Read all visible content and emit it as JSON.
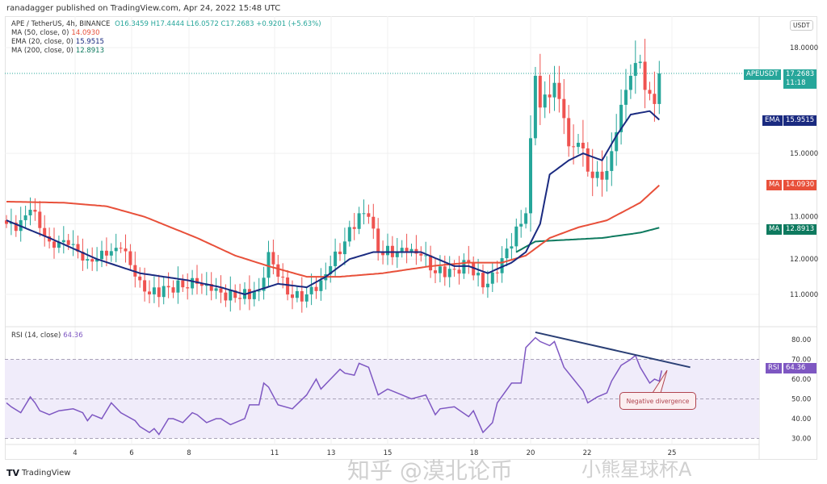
{
  "publisher_line": "ranadagger published on TradingView.com, Apr 24, 2022 15:48 UTC",
  "legend": {
    "symbol": "APE / TetherUS, 4h, BINANCE",
    "ohlc": "O16.3459  H17.4444  L16.0572  C17.2683  +0.9201 (+5.63%)",
    "ma50_label": "MA (50, close, 0)",
    "ma50_value": "14.0930",
    "ema20_label": "EMA (20, close, 0)",
    "ema20_value": "15.9515",
    "ma200_label": "MA (200, close, 0)",
    "ma200_value": "12.8913",
    "rsi_label": "RSI (14, close)",
    "rsi_value": "64.36"
  },
  "currency_button": "USDT",
  "price_tags": {
    "symbol": "APEUSDT",
    "price": "17.2683",
    "countdown": "11:18",
    "ema_name": "EMA",
    "ema": "15.9515",
    "ma50_name": "MA",
    "ma50": "14.0930",
    "ma200_name": "MA",
    "ma200": "12.8913",
    "rsi_name": "RSI",
    "rsi": "64.36"
  },
  "annotation": "Negative divergence",
  "footer": {
    "brand": "TradingView"
  },
  "watermark": {
    "line1": "知乎 @漠北论币",
    "line2": "小熊星球杯A"
  },
  "colors": {
    "up": "#26a69a",
    "down": "#ef5350",
    "ema": "#1a2a80",
    "ma50": "#e8503a",
    "ma200": "#0e7a5f",
    "rsi": "#7e57c2",
    "trend": "#2a3f75"
  },
  "chart_data": [
    {
      "type": "candlestick",
      "title": "APE / TetherUS, 4h, BINANCE",
      "y_ticks": [
        "11.0000",
        "12.0000",
        "13.0000",
        "15.0000",
        "18.0000"
      ],
      "ylim": [
        10.4,
        18.9
      ],
      "x_ticks": [
        "4",
        "6",
        "8",
        "11",
        "13",
        "15",
        "18",
        "20",
        "22",
        "25"
      ],
      "candle_count": 138,
      "close_anchors": [
        [
          0,
          13.0
        ],
        [
          2,
          12.8
        ],
        [
          5,
          13.4
        ],
        [
          9,
          12.5
        ],
        [
          13,
          12.4
        ],
        [
          17,
          12.0
        ],
        [
          21,
          12.1
        ],
        [
          24,
          12.3
        ],
        [
          28,
          11.4
        ],
        [
          30,
          11.0
        ],
        [
          34,
          11.2
        ],
        [
          40,
          11.3
        ],
        [
          43,
          11.1
        ],
        [
          48,
          10.9
        ],
        [
          53,
          11.1
        ],
        [
          55,
          12.2
        ],
        [
          57,
          11.5
        ],
        [
          60,
          10.9
        ],
        [
          63,
          11.0
        ],
        [
          66,
          11.4
        ],
        [
          68,
          11.8
        ],
        [
          71,
          12.5
        ],
        [
          74,
          13.3
        ],
        [
          76,
          13.2
        ],
        [
          78,
          12.2
        ],
        [
          84,
          12.2
        ],
        [
          87,
          12.1
        ],
        [
          90,
          11.6
        ],
        [
          94,
          11.7
        ],
        [
          97,
          11.9
        ],
        [
          100,
          11.2
        ],
        [
          103,
          11.6
        ],
        [
          105,
          12.3
        ],
        [
          108,
          13.0
        ],
        [
          109,
          13.3
        ],
        [
          111,
          17.2
        ],
        [
          112,
          16.3
        ],
        [
          115,
          17.0
        ],
        [
          117,
          16.0
        ],
        [
          118,
          15.2
        ],
        [
          120,
          15.3
        ],
        [
          123,
          14.3
        ],
        [
          126,
          14.5
        ],
        [
          128,
          15.6
        ],
        [
          130,
          16.8
        ],
        [
          131,
          17.2
        ],
        [
          133,
          17.6
        ],
        [
          134,
          16.8
        ],
        [
          136,
          16.4
        ],
        [
          137,
          17.2683
        ]
      ],
      "ema20": [
        [
          0,
          13.1
        ],
        [
          9,
          12.6
        ],
        [
          19,
          12.0
        ],
        [
          28,
          11.6
        ],
        [
          38,
          11.4
        ],
        [
          45,
          11.2
        ],
        [
          50,
          11.0
        ],
        [
          57,
          11.3
        ],
        [
          63,
          11.2
        ],
        [
          67,
          11.5
        ],
        [
          72,
          12.0
        ],
        [
          77,
          12.2
        ],
        [
          87,
          12.2
        ],
        [
          94,
          11.8
        ],
        [
          97,
          11.8
        ],
        [
          101,
          11.6
        ],
        [
          106,
          11.9
        ],
        [
          109,
          12.2
        ],
        [
          112,
          13.0
        ],
        [
          114,
          14.4
        ],
        [
          118,
          14.8
        ],
        [
          121,
          15.0
        ],
        [
          125,
          14.8
        ],
        [
          128,
          15.5
        ],
        [
          131,
          16.1
        ],
        [
          135,
          16.2
        ],
        [
          137,
          15.9515
        ]
      ],
      "ma50": [
        [
          0,
          13.63
        ],
        [
          12,
          13.6
        ],
        [
          21,
          13.5
        ],
        [
          29,
          13.2
        ],
        [
          40,
          12.6
        ],
        [
          48,
          12.1
        ],
        [
          55,
          11.8
        ],
        [
          63,
          11.5
        ],
        [
          70,
          11.5
        ],
        [
          79,
          11.6
        ],
        [
          89,
          11.8
        ],
        [
          97,
          11.9
        ],
        [
          104,
          11.9
        ],
        [
          109,
          12.1
        ],
        [
          114,
          12.6
        ],
        [
          120,
          12.9
        ],
        [
          126,
          13.1
        ],
        [
          133,
          13.6
        ],
        [
          137,
          14.093
        ]
      ],
      "ma200": [
        [
          107,
          12.2
        ],
        [
          111,
          12.5
        ],
        [
          118,
          12.55
        ],
        [
          125,
          12.6
        ],
        [
          133,
          12.75
        ],
        [
          137,
          12.8913
        ]
      ],
      "last_price": 17.2683
    },
    {
      "type": "line",
      "title": "RSI (14, close)",
      "y_ticks": [
        "30.00",
        "40.00",
        "50.00",
        "60.00",
        "70.00",
        "80.00"
      ],
      "ylim": [
        26,
        86
      ],
      "band": [
        30,
        70
      ],
      "midline": 50,
      "values": [
        [
          0,
          48
        ],
        [
          1,
          46
        ],
        [
          3,
          43
        ],
        [
          5,
          51
        ],
        [
          6,
          48
        ],
        [
          7,
          44
        ],
        [
          9,
          42
        ],
        [
          11,
          44
        ],
        [
          14,
          45
        ],
        [
          16,
          43
        ],
        [
          17,
          39
        ],
        [
          18,
          42
        ],
        [
          20,
          40
        ],
        [
          22,
          48
        ],
        [
          24,
          43
        ],
        [
          27,
          39
        ],
        [
          28,
          36
        ],
        [
          30,
          33
        ],
        [
          31,
          35
        ],
        [
          32,
          32
        ],
        [
          34,
          40
        ],
        [
          35,
          40
        ],
        [
          37,
          38
        ],
        [
          39,
          43
        ],
        [
          40,
          42
        ],
        [
          42,
          38
        ],
        [
          44,
          40
        ],
        [
          45,
          40
        ],
        [
          47,
          37
        ],
        [
          50,
          40
        ],
        [
          51,
          47
        ],
        [
          53,
          47
        ],
        [
          54,
          58
        ],
        [
          55,
          56
        ],
        [
          57,
          47
        ],
        [
          60,
          45
        ],
        [
          63,
          52
        ],
        [
          65,
          60
        ],
        [
          66,
          55
        ],
        [
          68,
          60
        ],
        [
          70,
          65
        ],
        [
          71,
          63
        ],
        [
          73,
          62
        ],
        [
          74,
          68
        ],
        [
          76,
          66
        ],
        [
          78,
          52
        ],
        [
          80,
          55
        ],
        [
          83,
          52
        ],
        [
          85,
          50
        ],
        [
          88,
          52
        ],
        [
          90,
          42
        ],
        [
          91,
          45
        ],
        [
          94,
          46
        ],
        [
          97,
          41
        ],
        [
          98,
          44
        ],
        [
          100,
          33
        ],
        [
          102,
          38
        ],
        [
          103,
          48
        ],
        [
          106,
          58
        ],
        [
          108,
          58
        ],
        [
          109,
          76
        ],
        [
          111,
          81
        ],
        [
          112,
          79
        ],
        [
          114,
          77
        ],
        [
          115,
          79
        ],
        [
          117,
          66
        ],
        [
          119,
          60
        ],
        [
          121,
          54
        ],
        [
          122,
          48
        ],
        [
          124,
          51
        ],
        [
          126,
          53
        ],
        [
          127,
          59
        ],
        [
          129,
          67
        ],
        [
          131,
          70
        ],
        [
          132,
          72
        ],
        [
          133,
          66
        ],
        [
          135,
          58
        ],
        [
          136,
          60
        ],
        [
          137,
          59
        ],
        [
          137.5,
          64.36
        ]
      ],
      "divergence_line": [
        [
          111,
          83.7
        ],
        [
          143.5,
          66
        ]
      ],
      "last_value": 64.36
    }
  ]
}
